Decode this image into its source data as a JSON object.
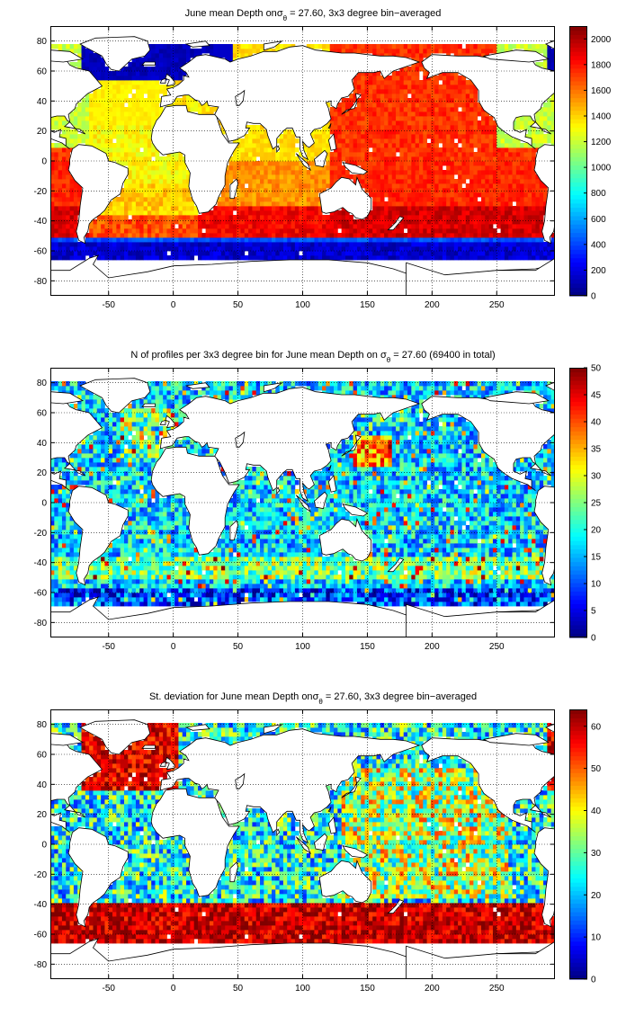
{
  "chart_data": [
    {
      "type": "heatmap",
      "title": "June mean Depth on σθ = 27.60, 3x3 degree bin−averaged",
      "title_parts": {
        "pre": "June mean Depth on",
        "sigma": "σ",
        "sub": "θ",
        "post": " = 27.60, 3x3 degree bin−averaged"
      },
      "xlabel": "",
      "ylabel": "",
      "xlim": [
        -95,
        295
      ],
      "ylim": [
        -90,
        90
      ],
      "xticks": [
        -50,
        0,
        50,
        100,
        150,
        200,
        250
      ],
      "yticks": [
        -80,
        -60,
        -40,
        -20,
        0,
        20,
        40,
        60,
        80
      ],
      "grid": true,
      "colormap": "jet",
      "clim": [
        0,
        2100
      ],
      "colorbar_ticks": [
        0,
        200,
        400,
        600,
        800,
        1000,
        1200,
        1400,
        1600,
        1800,
        2000
      ],
      "field": "depth"
    },
    {
      "type": "heatmap",
      "title": "N of profiles per 3x3 degree bin for June mean Depth on σθ = 27.60 (69400 in total)",
      "title_parts": {
        "pre": "N of profiles per 3x3 degree bin for June mean Depth on ",
        "sigma": "σ",
        "sub": "θ",
        "post": " = 27.60 (69400 in total)"
      },
      "xlabel": "",
      "ylabel": "",
      "xlim": [
        -95,
        295
      ],
      "ylim": [
        -90,
        90
      ],
      "xticks": [
        -50,
        0,
        50,
        100,
        150,
        200,
        250
      ],
      "yticks": [
        -80,
        -60,
        -40,
        -20,
        0,
        20,
        40,
        60,
        80
      ],
      "grid": true,
      "colormap": "jet",
      "clim": [
        0,
        50
      ],
      "colorbar_ticks": [
        0,
        5,
        10,
        15,
        20,
        25,
        30,
        35,
        40,
        45,
        50
      ],
      "field": "count"
    },
    {
      "type": "heatmap",
      "title": "St. deviation for June mean Depth onσθ = 27.60, 3x3 degree bin−averaged",
      "title_parts": {
        "pre": "St. deviation for June mean Depth on",
        "sigma": "σ",
        "sub": "θ",
        "post": " = 27.60, 3x3 degree bin−averaged"
      },
      "xlabel": "",
      "ylabel": "",
      "xlim": [
        -95,
        295
      ],
      "ylim": [
        -90,
        90
      ],
      "xticks": [
        -50,
        0,
        50,
        100,
        150,
        200,
        250
      ],
      "yticks": [
        -80,
        -60,
        -40,
        -20,
        0,
        20,
        40,
        60,
        80
      ],
      "grid": true,
      "colormap": "jet",
      "clim": [
        0,
        64
      ],
      "colorbar_ticks": [
        0,
        10,
        20,
        30,
        40,
        50,
        60
      ],
      "field": "std"
    }
  ],
  "colors": {
    "background": "#ffffff",
    "axes": "#000000",
    "land_outline": "#000000"
  }
}
